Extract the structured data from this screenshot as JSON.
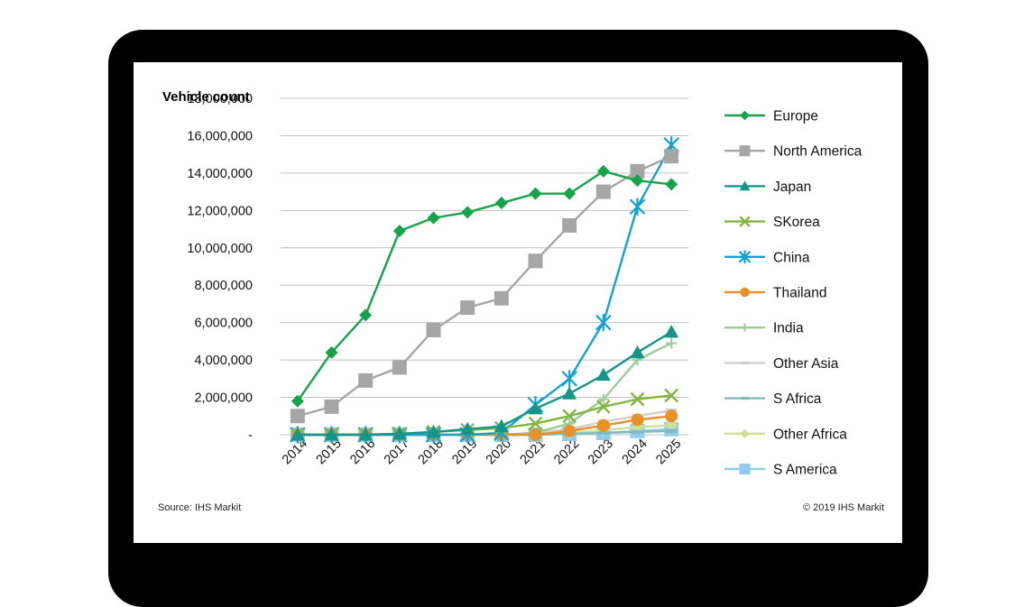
{
  "chart_data": {
    "type": "line",
    "title": "",
    "ylabel": "Vehicle count",
    "xlabel": "",
    "ylim": [
      0,
      18000000
    ],
    "yticks": [
      0,
      2000000,
      4000000,
      6000000,
      8000000,
      10000000,
      12000000,
      14000000,
      16000000,
      18000000
    ],
    "ytick_labels": [
      "-",
      "2,000,000",
      "4,000,000",
      "6,000,000",
      "8,000,000",
      "10,000,000",
      "12,000,000",
      "14,000,000",
      "16,000,000",
      "18,000,000"
    ],
    "categories": [
      "2014",
      "2015",
      "2016",
      "2017",
      "2018",
      "2019",
      "2020",
      "2021",
      "2022",
      "2023",
      "2024",
      "2025"
    ],
    "grid": true,
    "legend_position": "right",
    "series": [
      {
        "name": "Europe",
        "color": "#16a34a",
        "marker": "diamond",
        "values": [
          1800000,
          4400000,
          6400000,
          10900000,
          11600000,
          11900000,
          12400000,
          12900000,
          12900000,
          14100000,
          13600000,
          13400000
        ]
      },
      {
        "name": "North America",
        "color": "#a6a6a6",
        "marker": "square",
        "values": [
          1000000,
          1500000,
          2900000,
          3600000,
          5600000,
          6800000,
          7300000,
          9300000,
          11200000,
          13000000,
          14100000,
          14900000
        ]
      },
      {
        "name": "Japan",
        "color": "#17958b",
        "marker": "triangle",
        "values": [
          0,
          0,
          0,
          50000,
          150000,
          300000,
          450000,
          1400000,
          2200000,
          3200000,
          4400000,
          5500000
        ]
      },
      {
        "name": "SKorea",
        "color": "#82b541",
        "marker": "x",
        "values": [
          0,
          0,
          0,
          50000,
          150000,
          250000,
          350000,
          600000,
          1000000,
          1500000,
          1900000,
          2100000
        ]
      },
      {
        "name": "China",
        "color": "#13a3d3",
        "marker": "asterisk",
        "values": [
          0,
          0,
          0,
          0,
          0,
          0,
          100000,
          1600000,
          3000000,
          6000000,
          12200000,
          15500000
        ]
      },
      {
        "name": "Thailand",
        "color": "#e8912a",
        "marker": "circle",
        "values": [
          0,
          0,
          0,
          0,
          0,
          0,
          0,
          0,
          200000,
          500000,
          800000,
          1000000
        ]
      },
      {
        "name": "India",
        "color": "#99cc99",
        "marker": "plus",
        "values": [
          0,
          0,
          0,
          0,
          0,
          0,
          0,
          100000,
          600000,
          1900000,
          4000000,
          4900000
        ]
      },
      {
        "name": "Other Asia",
        "color": "#cfcfcf",
        "marker": "dash",
        "values": [
          0,
          0,
          0,
          0,
          0,
          0,
          0,
          100000,
          300000,
          700000,
          1000000,
          1300000
        ]
      },
      {
        "name": "S Africa",
        "color": "#7fbcbf",
        "marker": "dash",
        "values": [
          0,
          0,
          0,
          0,
          0,
          0,
          0,
          0,
          50000,
          100000,
          150000,
          200000
        ]
      },
      {
        "name": "Other Africa",
        "color": "#cfe096",
        "marker": "diamond",
        "values": [
          0,
          0,
          0,
          0,
          0,
          0,
          0,
          0,
          100000,
          250000,
          400000,
          500000
        ]
      },
      {
        "name": "S America",
        "color": "#8fccef",
        "marker": "square",
        "values": [
          0,
          0,
          0,
          0,
          0,
          0,
          0,
          0,
          50000,
          100000,
          200000,
          300000
        ]
      }
    ]
  },
  "footer": {
    "source": "Source: IHS Markit",
    "copyright": "© 2019 IHS Markit"
  }
}
